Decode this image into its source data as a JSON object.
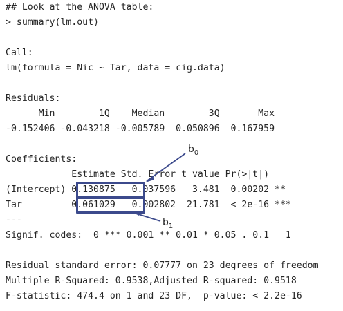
{
  "console": {
    "lines": [
      "## Look at the ANOVA table:",
      "> summary(lm.out)",
      "",
      "Call:",
      "lm(formula = Nic ~ Tar, data = cig.data)",
      "",
      "Residuals:",
      "      Min        1Q    Median        3Q       Max",
      "-0.152406 -0.043218 -0.005789  0.050896  0.167959",
      "",
      "Coefficients:",
      "            Estimate Std. Error t value Pr(>|t|)",
      "(Intercept) 0.130875   0.037596   3.481  0.00202 **",
      "Tar         0.061029   0.002802  21.781  < 2e-16 ***",
      "---",
      "Signif. codes:  0 *** 0.001 ** 0.01 * 0.05 . 0.1   1",
      "",
      "Residual standard error: 0.07777 on 23 degrees of freedom",
      "Multiple R-Squared: 0.9538,Adjusted R-squared: 0.9518",
      "F-statistic: 474.4 on 1 and 23 DF,  p-value: < 2.2e-16"
    ]
  },
  "annotations": {
    "b0": {
      "base": "b",
      "sub": "0"
    },
    "b1": {
      "base": "b",
      "sub": "1"
    }
  },
  "colors": {
    "box": "#3c4a8c",
    "text": "#262626"
  }
}
